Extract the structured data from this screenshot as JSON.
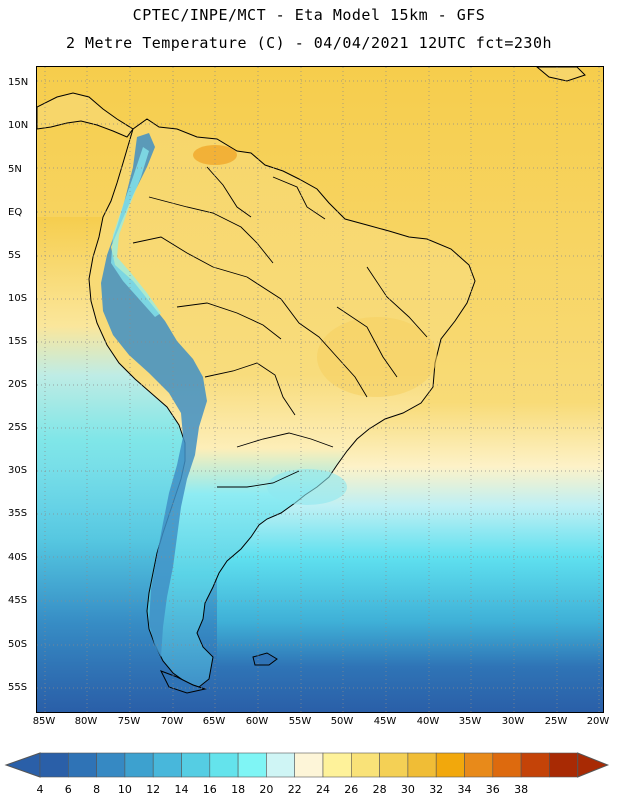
{
  "header": {
    "line1": "CPTEC/INPE/MCT -  Eta Model 15km - GFS",
    "line2": "2 Metre Temperature (C) - 04/04/2021 12UTC fct=230h"
  },
  "map": {
    "lat_labels": [
      "15N",
      "10N",
      "5N",
      "EQ",
      "5S",
      "10S",
      "15S",
      "20S",
      "25S",
      "30S",
      "35S",
      "40S",
      "45S",
      "50S",
      "55S"
    ],
    "lon_labels": [
      "85W",
      "80W",
      "75W",
      "70W",
      "65W",
      "60W",
      "55W",
      "50W",
      "45W",
      "40W",
      "35W",
      "30W",
      "25W",
      "20W"
    ],
    "land_fill": "#f6d867",
    "ocean_warm": "#f3c544",
    "ocean_mid": "#fef3c0",
    "ocean_cool": "#5fe0ef",
    "ocean_cold": "#2b6fb3",
    "andes_color": "#3f8fc6",
    "border_color": "#000000",
    "grid_color": "#808080"
  },
  "colorbar": {
    "labels": [
      "4",
      "6",
      "8",
      "10",
      "12",
      "14",
      "16",
      "18",
      "20",
      "22",
      "24",
      "26",
      "28",
      "30",
      "32",
      "34",
      "36",
      "38"
    ],
    "colors": [
      "#2a5fa8",
      "#2f73b6",
      "#3689c3",
      "#3da1cf",
      "#48b7db",
      "#55cde3",
      "#64e3ec",
      "#7ff5f5",
      "#cff5f5",
      "#fdf5d8",
      "#fef29a",
      "#f9e278",
      "#f4d055",
      "#f0bd36",
      "#f2a80c",
      "#e88a1a",
      "#dd6a0e",
      "#c44308",
      "#a82a04"
    ],
    "end_left": "#2a5fa8",
    "end_right": "#a82a04"
  }
}
